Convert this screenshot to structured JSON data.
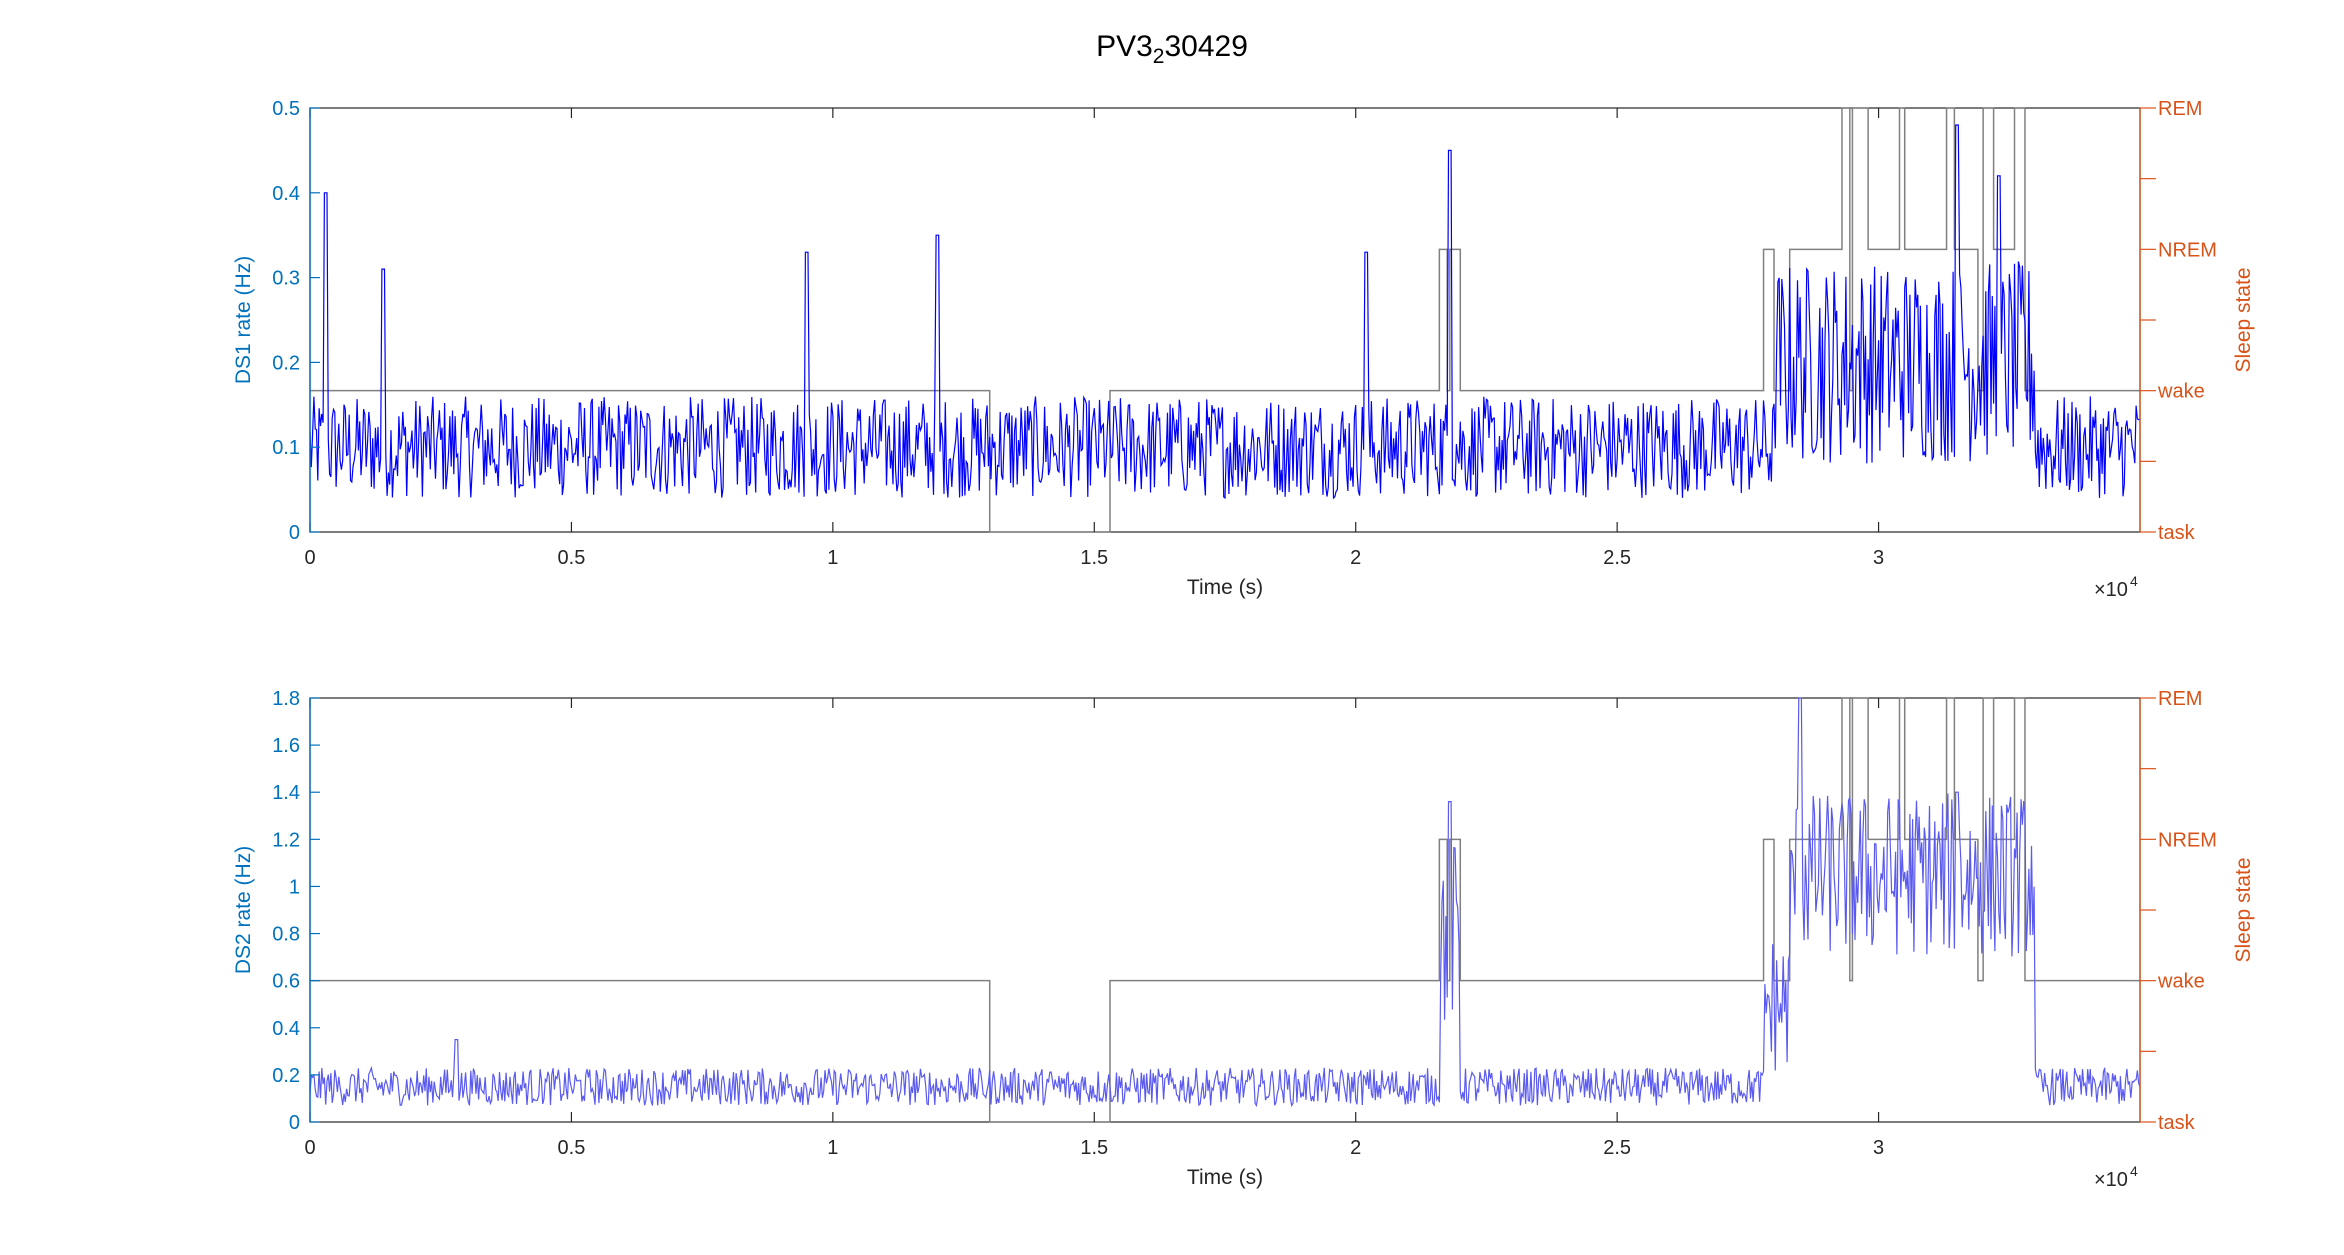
{
  "title": {
    "main": "PV3",
    "sub": "2",
    "rest": "30429"
  },
  "colors": {
    "left_axis": "#0072BD",
    "right_axis": "#D95319",
    "ds1_line": "#0000FF",
    "ds2_line": "#5A5AF0",
    "state_line": "#808080",
    "frame": "#262626"
  },
  "chart_data": [
    {
      "type": "line",
      "xlabel": "Time (s)",
      "x_exponent": "×10",
      "x_exponent_power": "4",
      "x_tick_labels": [
        "0",
        "0.5",
        "1",
        "1.5",
        "2",
        "2.5",
        "3"
      ],
      "xlim": [
        0,
        35000
      ],
      "ylabel": "DS1 rate (Hz)",
      "ylim": [
        0,
        0.5
      ],
      "y_tick_labels": [
        "0",
        "0.1",
        "0.2",
        "0.3",
        "0.4",
        "0.5"
      ],
      "y2label": "Sleep state",
      "y2_tick_labels": [
        "task",
        "wake",
        "NREM",
        "REM"
      ],
      "series": [
        {
          "values_hint": "noisy rate trace",
          "baseline": 0.1,
          "peaks": [
            [
              300,
              0.4
            ],
            [
              1400,
              0.31
            ],
            [
              9500,
              0.33
            ],
            [
              12000,
              0.35
            ],
            [
              20200,
              0.33
            ],
            [
              21800,
              0.45
            ],
            [
              31500,
              0.48
            ],
            [
              32300,
              0.42
            ]
          ]
        }
      ]
    },
    {
      "type": "line",
      "xlabel": "Time (s)",
      "x_exponent": "×10",
      "x_exponent_power": "4",
      "x_tick_labels": [
        "0",
        "0.5",
        "1",
        "1.5",
        "2",
        "2.5",
        "3"
      ],
      "xlim": [
        0,
        35000
      ],
      "ylabel": "DS2 rate (Hz)",
      "ylim": [
        0,
        1.8
      ],
      "y_tick_labels": [
        "0",
        "0.2",
        "0.4",
        "0.6",
        "0.8",
        "1",
        "1.2",
        "1.4",
        "1.6",
        "1.8"
      ],
      "y2label": "Sleep state",
      "y2_tick_labels": [
        "task",
        "wake",
        "NREM",
        "REM"
      ],
      "series": [
        {
          "values_hint": "noisy rate trace",
          "baseline": 0.15,
          "peaks": [
            [
              2800,
              0.35
            ],
            [
              21800,
              1.36
            ],
            [
              28500,
              1.8
            ],
            [
              31500,
              1.4
            ]
          ]
        }
      ]
    }
  ],
  "sleep_state_levels": {
    "task": 0,
    "wake": 1,
    "NREM": 2,
    "REM": 3
  },
  "sleep_state_segments": [
    [
      0,
      1
    ],
    [
      13000,
      0
    ],
    [
      15300,
      1
    ],
    [
      21600,
      2
    ],
    [
      21750,
      1
    ],
    [
      21800,
      2
    ],
    [
      22000,
      1
    ],
    [
      27800,
      2
    ],
    [
      28000,
      1
    ],
    [
      28300,
      2
    ],
    [
      29300,
      3
    ],
    [
      29450,
      1
    ],
    [
      29500,
      3
    ],
    [
      29800,
      2
    ],
    [
      30400,
      3
    ],
    [
      30500,
      2
    ],
    [
      31300,
      3
    ],
    [
      31450,
      2
    ],
    [
      31900,
      1
    ],
    [
      32000,
      3
    ],
    [
      32200,
      2
    ],
    [
      32600,
      3
    ],
    [
      32800,
      1
    ],
    [
      35000,
      1
    ]
  ]
}
